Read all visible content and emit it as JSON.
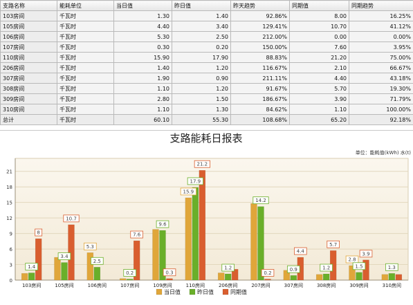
{
  "table": {
    "headers": [
      "支路名称",
      "能耗单位",
      "当日值",
      "昨日值",
      "昨天趋势",
      "同期值",
      "同期趋势"
    ],
    "rows": [
      [
        "103房间",
        "千瓦时",
        "1.30",
        "1.40",
        "92.86%",
        "8.00",
        "16.25%"
      ],
      [
        "105房间",
        "千瓦时",
        "4.40",
        "3.40",
        "129.41%",
        "10.70",
        "41.12%"
      ],
      [
        "106房间",
        "千瓦时",
        "5.30",
        "2.50",
        "212.00%",
        "0.00",
        "0.00%"
      ],
      [
        "107房间",
        "千瓦时",
        "0.30",
        "0.20",
        "150.00%",
        "7.60",
        "3.95%"
      ],
      [
        "110房间",
        "千瓦时",
        "15.90",
        "17.90",
        "88.83%",
        "21.20",
        "75.00%"
      ],
      [
        "206房间",
        "千瓦时",
        "1.40",
        "1.20",
        "116.67%",
        "2.10",
        "66.67%"
      ],
      [
        "307房间",
        "千瓦时",
        "1.90",
        "0.90",
        "211.11%",
        "4.40",
        "43.18%"
      ],
      [
        "308房间",
        "千瓦时",
        "1.10",
        "1.20",
        "91.67%",
        "5.70",
        "19.30%"
      ],
      [
        "309房间",
        "千瓦时",
        "2.80",
        "1.50",
        "186.67%",
        "3.90",
        "71.79%"
      ],
      [
        "310房间",
        "千瓦时",
        "1.10",
        "1.30",
        "84.62%",
        "1.10",
        "100.00%"
      ]
    ],
    "total": [
      "总计",
      "千瓦时",
      "60.10",
      "55.30",
      "108.68%",
      "65.20",
      "92.18%"
    ]
  },
  "chart_data": {
    "type": "bar",
    "title": "支路能耗日报表",
    "unit_label": "单位：能耗值(kWh) 水(t)",
    "categories": [
      "103房间",
      "105房间",
      "106房间",
      "107房间",
      "109房间",
      "110房间",
      "206房间",
      "207房间",
      "307房间",
      "308房间",
      "309房间",
      "310房间"
    ],
    "series": [
      {
        "name": "当日值",
        "color": "#e0a63a",
        "values": [
          1.3,
          4.4,
          5.3,
          0.3,
          9.8,
          15.9,
          1.4,
          14.8,
          1.9,
          1.1,
          2.8,
          1.1
        ],
        "labels": [
          null,
          null,
          "5.3",
          null,
          null,
          "15.9",
          null,
          null,
          null,
          null,
          "2.8",
          null
        ]
      },
      {
        "name": "昨日值",
        "color": "#6aaf2a",
        "values": [
          1.4,
          3.4,
          2.5,
          0.2,
          9.6,
          17.9,
          1.2,
          14.2,
          0.9,
          1.2,
          1.5,
          1.3
        ],
        "labels": [
          "1.4",
          "3.4",
          "2.5",
          "0.2",
          "9.6",
          "17.9",
          "1.2",
          "14.2",
          "0.9",
          "1.2",
          "1.5",
          "1.3"
        ]
      },
      {
        "name": "同期值",
        "color": "#d95e2f",
        "values": [
          8.0,
          10.7,
          0.0,
          7.6,
          0.3,
          21.2,
          2.1,
          0.2,
          4.4,
          5.7,
          3.9,
          1.1
        ],
        "labels": [
          "8",
          "10.7",
          null,
          "7.6",
          "0.3",
          "21.2",
          null,
          "0.2",
          "4.4",
          "5.7",
          "3.9",
          null
        ]
      }
    ],
    "y_ticks": [
      0,
      3,
      6,
      9,
      12,
      15,
      18,
      21
    ],
    "ylim": [
      0,
      23.5
    ],
    "grid": true,
    "legend_position": "bottom-center"
  }
}
